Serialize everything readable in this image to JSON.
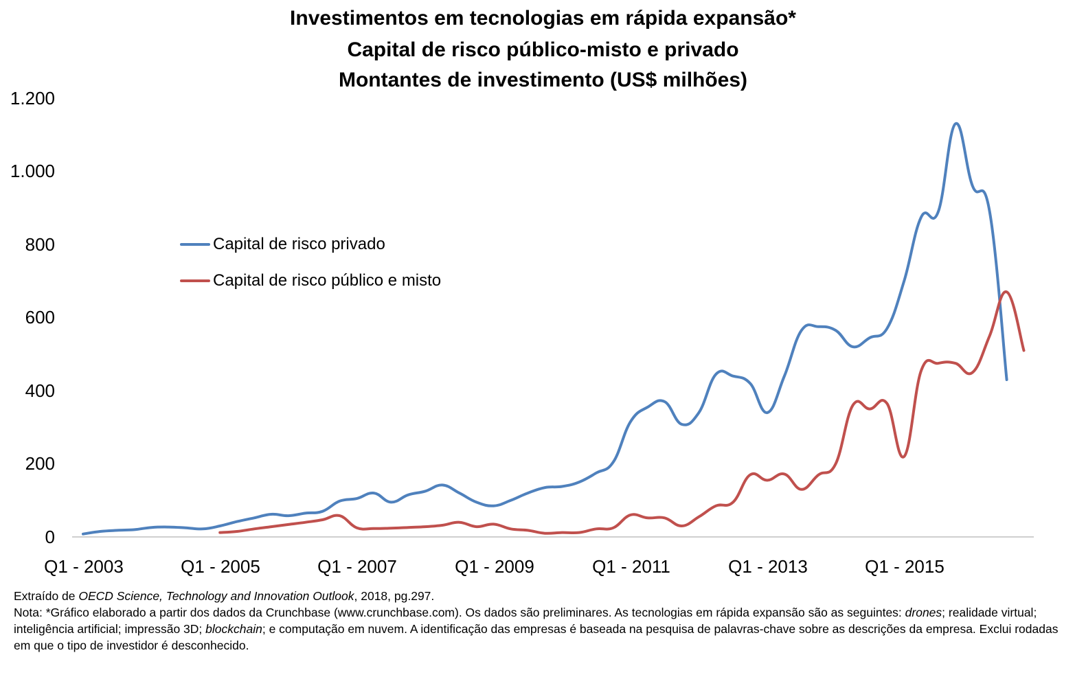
{
  "chart_data": {
    "type": "line",
    "title_lines": [
      "Investimentos em tecnologias em rápida expansão*",
      "Capital de risco público-misto e privado",
      "Montantes de investimento (US$ milhões)"
    ],
    "xlabel": "",
    "ylabel": "",
    "ylim": [
      0,
      1200
    ],
    "yticks": [
      0,
      200,
      400,
      600,
      800,
      1000,
      1200
    ],
    "ytick_labels": [
      "0",
      "200",
      "400",
      "600",
      "800",
      "1.000",
      "1.200"
    ],
    "xtick_labels": [
      "Q1 - 2003",
      "Q1 - 2005",
      "Q1 - 2007",
      "Q1 - 2009",
      "Q1 - 2011",
      "Q1 - 2013",
      "Q1 - 2015"
    ],
    "x_categories": [
      "Q1 2003",
      "Q2 2003",
      "Q3 2003",
      "Q4 2003",
      "Q1 2004",
      "Q2 2004",
      "Q3 2004",
      "Q4 2004",
      "Q1 2005",
      "Q2 2005",
      "Q3 2005",
      "Q4 2005",
      "Q1 2006",
      "Q2 2006",
      "Q3 2006",
      "Q4 2006",
      "Q1 2007",
      "Q2 2007",
      "Q3 2007",
      "Q4 2007",
      "Q1 2008",
      "Q2 2008",
      "Q3 2008",
      "Q4 2008",
      "Q1 2009",
      "Q2 2009",
      "Q3 2009",
      "Q4 2009",
      "Q1 2010",
      "Q2 2010",
      "Q3 2010",
      "Q4 2010",
      "Q1 2011",
      "Q2 2011",
      "Q3 2011",
      "Q4 2011",
      "Q1 2012",
      "Q2 2012",
      "Q3 2012",
      "Q4 2012",
      "Q1 2013",
      "Q2 2013",
      "Q3 2013",
      "Q4 2013",
      "Q1 2014",
      "Q2 2014",
      "Q3 2014",
      "Q4 2014",
      "Q1 2015",
      "Q2 2015",
      "Q3 2015",
      "Q4 2015",
      "Q1 2016",
      "Q2 2016",
      "Q3 2016",
      "Q4 2016",
      "Q1 2017"
    ],
    "grid": false,
    "legend_position": "upper-left",
    "series": [
      {
        "name": "Capital de risco privado",
        "color": "#4f81bd",
        "values": [
          8,
          15,
          18,
          20,
          26,
          27,
          25,
          22,
          30,
          42,
          52,
          62,
          58,
          65,
          70,
          98,
          105,
          120,
          95,
          115,
          125,
          142,
          120,
          95,
          85,
          100,
          120,
          135,
          138,
          150,
          175,
          205,
          315,
          355,
          370,
          308,
          340,
          445,
          440,
          420,
          340,
          440,
          565,
          575,
          565,
          520,
          545,
          570,
          700,
          875,
          890,
          1130,
          960,
          890,
          430,
          null,
          null
        ]
      },
      {
        "name": "Capital de risco público e misto",
        "color": "#c0504d",
        "values": [
          null,
          null,
          null,
          null,
          null,
          null,
          null,
          null,
          12,
          15,
          22,
          28,
          34,
          40,
          47,
          58,
          25,
          23,
          24,
          26,
          28,
          32,
          40,
          28,
          35,
          22,
          18,
          10,
          12,
          12,
          22,
          25,
          60,
          52,
          52,
          30,
          55,
          85,
          95,
          170,
          155,
          172,
          130,
          170,
          200,
          360,
          350,
          365,
          220,
          455,
          475,
          475,
          450,
          550,
          670,
          510,
          null
        ]
      }
    ]
  },
  "footer": {
    "source_prefix": "Extraído de ",
    "source_italic": "OECD Science, Technology and Innovation Outlook",
    "source_suffix": ", 2018, pg.297.",
    "note_part1": "Nota: *Gráfico elaborado a partir dos dados da Crunchbase (www.crunchbase.com). Os dados são preliminares. As tecnologias em rápida expansão são as seguintes: ",
    "note_italic1": "drones",
    "note_part2": "; realidade virtual; inteligência artificial; impressão 3D; ",
    "note_italic2": "blockchain",
    "note_part3": "; e computação em nuvem. A identificação das empresas é baseada na pesquisa de palavras-chave sobre as descrições da empresa. Exclui rodadas em que o tipo de investidor é desconhecido."
  }
}
